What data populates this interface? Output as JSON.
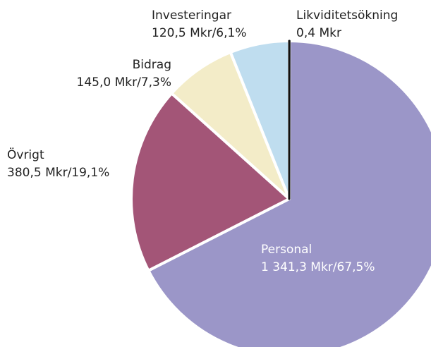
{
  "chart_data": {
    "type": "pie",
    "categories": [
      "Likviditetsökning",
      "Personal",
      "Övrigt",
      "Bidrag",
      "Investeringar"
    ],
    "values": [
      0.4,
      1341.3,
      380.5,
      145.0,
      120.5
    ],
    "value_labels": [
      "0,4 Mkr",
      "1 341,3 Mkr/67,5%",
      "380,5 Mkr/19,1%",
      "145,0 Mkr/7,3%",
      "120,5 Mkr/6,1%"
    ],
    "colors": [
      "#111111",
      "#9b96c8",
      "#a35577",
      "#f3ecc8",
      "#bfddef"
    ]
  }
}
